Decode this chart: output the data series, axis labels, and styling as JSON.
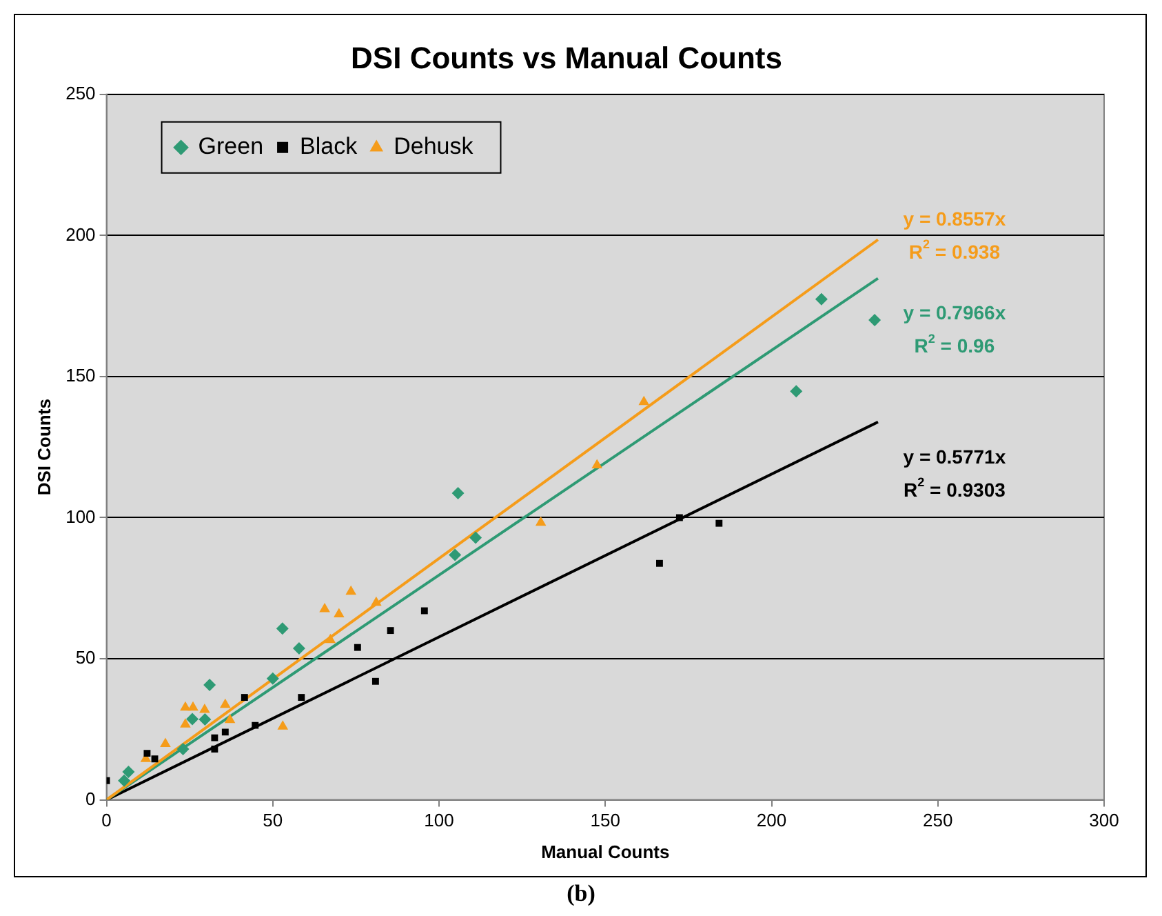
{
  "chart_data": {
    "type": "scatter",
    "title": "DSI Counts vs Manual Counts",
    "xlabel": "Manual Counts",
    "ylabel": "DSI Counts",
    "xlim": [
      0,
      300
    ],
    "xticks": [
      0,
      50,
      100,
      150,
      200,
      250,
      300
    ],
    "ylim": [
      0,
      250
    ],
    "yticks": [
      0,
      50,
      100,
      150,
      200,
      250
    ],
    "grid": "y",
    "legend": "top left",
    "series": [
      {
        "name": "Green",
        "type": "scatter",
        "marker": "diamond",
        "color": "#2e9a74",
        "x": [
          5.3,
          6.6,
          23,
          25.8,
          29.6,
          31,
          50,
          52.9,
          57.9,
          104.8,
          105.7,
          111,
          207.4,
          215,
          231
        ],
        "values": [
          6.8,
          9.9,
          18,
          28.6,
          28.5,
          40.7,
          43,
          60.7,
          53.7,
          86.8,
          108.7,
          92.9,
          144.8,
          177.4,
          170
        ]
      },
      {
        "name": "Black",
        "type": "scatter",
        "marker": "square",
        "color": "#000000",
        "x": [
          0,
          12.2,
          14.5,
          32.5,
          32.5,
          35.7,
          41.5,
          44.7,
          58.6,
          75.5,
          80.9,
          85.4,
          95.6,
          166.3,
          172.3,
          184.2
        ],
        "values": [
          6.8,
          16.5,
          14.5,
          22,
          18,
          24,
          36.3,
          26.4,
          36.3,
          54,
          42,
          60,
          67,
          83.8,
          100,
          98
        ]
      },
      {
        "name": "Dehusk",
        "type": "scatter",
        "marker": "triangle",
        "color": "#f59c1a",
        "x": [
          11.8,
          17.7,
          23.7,
          23.7,
          26,
          29.5,
          35.7,
          37.1,
          53,
          65.6,
          67.3,
          69.9,
          73.5,
          81.1,
          130.6,
          147.5,
          161.6
        ],
        "values": [
          14.5,
          19.8,
          26.7,
          32.7,
          32.7,
          31.9,
          33.7,
          28.3,
          26,
          67.6,
          56.7,
          65.8,
          73.8,
          69.9,
          98.2,
          118.6,
          141
        ]
      },
      {
        "type": "line",
        "marker": "none",
        "color": "#f59c1a",
        "x": [
          0,
          232
        ],
        "values": [
          0,
          198.5
        ]
      },
      {
        "type": "line",
        "marker": "none",
        "color": "#2e9a74",
        "x": [
          0,
          232
        ],
        "values": [
          0,
          184.8
        ]
      },
      {
        "type": "line",
        "marker": "none",
        "color": "#000000",
        "x": [
          0,
          232
        ],
        "values": [
          0,
          133.9
        ]
      }
    ],
    "annotations": [
      "y = 0.8557x",
      "R$^{2}$ = 0.938",
      "y = 0.7966x",
      "R$^{2}$ = 0.96",
      "y = 0.5771x",
      "R$^{2}$ = 0.9303",
      "(b)"
    ]
  }
}
